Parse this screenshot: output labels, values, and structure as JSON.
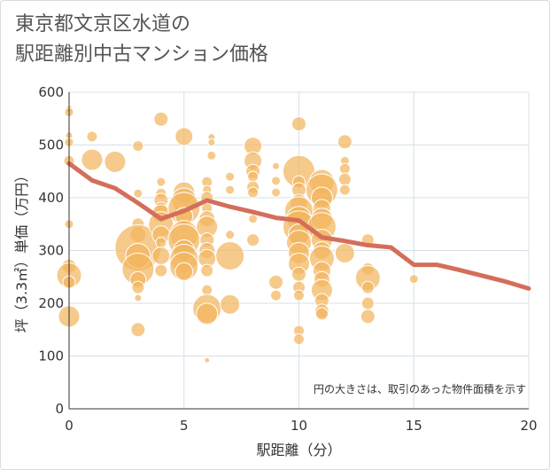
{
  "title_line1": "東京都文京区水道の",
  "title_line2": "駅距離別中古マンション価格",
  "chart_data": {
    "type": "scatter",
    "title": "東京都文京区水道の駅距離別中古マンション価格",
    "xlabel": "駅距離（分）",
    "ylabel": "坪（3.3㎡）単価（万円）",
    "xlim": [
      0,
      20
    ],
    "ylim": [
      0,
      600
    ],
    "xticks": [
      0,
      5,
      10,
      15,
      20
    ],
    "yticks": [
      0,
      100,
      200,
      300,
      400,
      500,
      600
    ],
    "grid": true,
    "note": "円の大きさは、取引のあった物件面積を示す",
    "colors": {
      "bubble": "#f2b55e",
      "line": "#d46e5a"
    },
    "average_line": {
      "x": [
        0,
        1,
        2,
        3,
        4,
        5,
        6,
        7,
        8,
        9,
        10,
        11,
        12,
        13,
        14,
        15,
        16,
        17,
        18,
        19,
        20
      ],
      "y": [
        465,
        433,
        418,
        390,
        360,
        375,
        395,
        383,
        373,
        362,
        357,
        325,
        318,
        310,
        306,
        273,
        273,
        263,
        252,
        241,
        228
      ]
    },
    "points": [
      {
        "x": 0,
        "y": 568,
        "s": 4
      },
      {
        "x": 0,
        "y": 562,
        "s": 5
      },
      {
        "x": 0,
        "y": 518,
        "s": 4
      },
      {
        "x": 0,
        "y": 505,
        "s": 5
      },
      {
        "x": 0,
        "y": 470,
        "s": 6
      },
      {
        "x": 0,
        "y": 350,
        "s": 5
      },
      {
        "x": 0,
        "y": 270,
        "s": 8
      },
      {
        "x": 0,
        "y": 253,
        "s": 14
      },
      {
        "x": 0,
        "y": 240,
        "s": 7
      },
      {
        "x": 0,
        "y": 175,
        "s": 12
      },
      {
        "x": 1,
        "y": 516,
        "s": 6
      },
      {
        "x": 1,
        "y": 472,
        "s": 12
      },
      {
        "x": 2,
        "y": 468,
        "s": 12
      },
      {
        "x": 3,
        "y": 498,
        "s": 6
      },
      {
        "x": 3,
        "y": 408,
        "s": 5
      },
      {
        "x": 3,
        "y": 350,
        "s": 7
      },
      {
        "x": 3,
        "y": 330,
        "s": 9
      },
      {
        "x": 3,
        "y": 305,
        "s": 26
      },
      {
        "x": 3,
        "y": 290,
        "s": 14
      },
      {
        "x": 3,
        "y": 265,
        "s": 18
      },
      {
        "x": 3,
        "y": 245,
        "s": 9
      },
      {
        "x": 3,
        "y": 230,
        "s": 7
      },
      {
        "x": 3,
        "y": 210,
        "s": 4
      },
      {
        "x": 3,
        "y": 150,
        "s": 8
      },
      {
        "x": 4,
        "y": 549,
        "s": 8
      },
      {
        "x": 4,
        "y": 430,
        "s": 5
      },
      {
        "x": 4,
        "y": 408,
        "s": 6
      },
      {
        "x": 4,
        "y": 395,
        "s": 8
      },
      {
        "x": 4,
        "y": 380,
        "s": 7
      },
      {
        "x": 4,
        "y": 370,
        "s": 10
      },
      {
        "x": 4,
        "y": 350,
        "s": 14
      },
      {
        "x": 4,
        "y": 330,
        "s": 10
      },
      {
        "x": 4,
        "y": 315,
        "s": 6
      },
      {
        "x": 4,
        "y": 290,
        "s": 10
      },
      {
        "x": 4,
        "y": 262,
        "s": 7
      },
      {
        "x": 5,
        "y": 516,
        "s": 10
      },
      {
        "x": 5,
        "y": 410,
        "s": 12
      },
      {
        "x": 5,
        "y": 395,
        "s": 14
      },
      {
        "x": 5,
        "y": 380,
        "s": 18
      },
      {
        "x": 5,
        "y": 365,
        "s": 10
      },
      {
        "x": 5,
        "y": 330,
        "s": 16
      },
      {
        "x": 5,
        "y": 320,
        "s": 18
      },
      {
        "x": 5,
        "y": 300,
        "s": 12
      },
      {
        "x": 5,
        "y": 285,
        "s": 16
      },
      {
        "x": 5,
        "y": 270,
        "s": 16
      },
      {
        "x": 5,
        "y": 260,
        "s": 10
      },
      {
        "x": 6,
        "y": 430,
        "s": 6
      },
      {
        "x": 6,
        "y": 415,
        "s": 5
      },
      {
        "x": 6,
        "y": 400,
        "s": 7
      },
      {
        "x": 6,
        "y": 380,
        "s": 6
      },
      {
        "x": 6,
        "y": 360,
        "s": 9
      },
      {
        "x": 6,
        "y": 345,
        "s": 12
      },
      {
        "x": 6,
        "y": 320,
        "s": 8
      },
      {
        "x": 6,
        "y": 300,
        "s": 9
      },
      {
        "x": 6,
        "y": 285,
        "s": 10
      },
      {
        "x": 6,
        "y": 262,
        "s": 7
      },
      {
        "x": 6,
        "y": 225,
        "s": 6
      },
      {
        "x": 6,
        "y": 190,
        "s": 16
      },
      {
        "x": 6,
        "y": 180,
        "s": 12
      },
      {
        "x": 6,
        "y": 92,
        "s": 3
      },
      {
        "x": 6.2,
        "y": 515,
        "s": 4
      },
      {
        "x": 6.2,
        "y": 505,
        "s": 4
      },
      {
        "x": 6.2,
        "y": 480,
        "s": 5
      },
      {
        "x": 7,
        "y": 440,
        "s": 5
      },
      {
        "x": 7,
        "y": 415,
        "s": 5
      },
      {
        "x": 7,
        "y": 330,
        "s": 5
      },
      {
        "x": 7,
        "y": 290,
        "s": 16
      },
      {
        "x": 7,
        "y": 198,
        "s": 11
      },
      {
        "x": 8,
        "y": 498,
        "s": 10
      },
      {
        "x": 8,
        "y": 470,
        "s": 10
      },
      {
        "x": 8,
        "y": 450,
        "s": 8
      },
      {
        "x": 8,
        "y": 440,
        "s": 6
      },
      {
        "x": 8,
        "y": 420,
        "s": 7
      },
      {
        "x": 8,
        "y": 410,
        "s": 6
      },
      {
        "x": 8,
        "y": 360,
        "s": 5
      },
      {
        "x": 8,
        "y": 320,
        "s": 7
      },
      {
        "x": 9,
        "y": 460,
        "s": 4
      },
      {
        "x": 9,
        "y": 432,
        "s": 5
      },
      {
        "x": 9,
        "y": 410,
        "s": 5
      },
      {
        "x": 9,
        "y": 240,
        "s": 8
      },
      {
        "x": 9,
        "y": 215,
        "s": 6
      },
      {
        "x": 10,
        "y": 540,
        "s": 8
      },
      {
        "x": 10,
        "y": 450,
        "s": 18
      },
      {
        "x": 10,
        "y": 430,
        "s": 7
      },
      {
        "x": 10,
        "y": 415,
        "s": 8
      },
      {
        "x": 10,
        "y": 390,
        "s": 10
      },
      {
        "x": 10,
        "y": 375,
        "s": 16
      },
      {
        "x": 10,
        "y": 360,
        "s": 14
      },
      {
        "x": 10,
        "y": 345,
        "s": 18
      },
      {
        "x": 10,
        "y": 330,
        "s": 12
      },
      {
        "x": 10,
        "y": 315,
        "s": 14
      },
      {
        "x": 10,
        "y": 295,
        "s": 12
      },
      {
        "x": 10,
        "y": 275,
        "s": 12
      },
      {
        "x": 10,
        "y": 255,
        "s": 8
      },
      {
        "x": 10,
        "y": 230,
        "s": 7
      },
      {
        "x": 10,
        "y": 215,
        "s": 6
      },
      {
        "x": 10,
        "y": 148,
        "s": 6
      },
      {
        "x": 10,
        "y": 132,
        "s": 6
      },
      {
        "x": 11,
        "y": 430,
        "s": 14
      },
      {
        "x": 11,
        "y": 415,
        "s": 18
      },
      {
        "x": 11,
        "y": 400,
        "s": 12
      },
      {
        "x": 11,
        "y": 380,
        "s": 10
      },
      {
        "x": 11,
        "y": 360,
        "s": 12
      },
      {
        "x": 11,
        "y": 345,
        "s": 16
      },
      {
        "x": 11,
        "y": 320,
        "s": 12
      },
      {
        "x": 11,
        "y": 300,
        "s": 10
      },
      {
        "x": 11,
        "y": 285,
        "s": 14
      },
      {
        "x": 11,
        "y": 262,
        "s": 10
      },
      {
        "x": 11,
        "y": 245,
        "s": 9
      },
      {
        "x": 11,
        "y": 225,
        "s": 12
      },
      {
        "x": 11,
        "y": 205,
        "s": 8
      },
      {
        "x": 11,
        "y": 185,
        "s": 8
      },
      {
        "x": 11,
        "y": 180,
        "s": 7
      },
      {
        "x": 12,
        "y": 506,
        "s": 8
      },
      {
        "x": 12,
        "y": 470,
        "s": 5
      },
      {
        "x": 12,
        "y": 455,
        "s": 6
      },
      {
        "x": 12,
        "y": 435,
        "s": 7
      },
      {
        "x": 12,
        "y": 415,
        "s": 6
      },
      {
        "x": 12,
        "y": 295,
        "s": 11
      },
      {
        "x": 13,
        "y": 320,
        "s": 7
      },
      {
        "x": 13,
        "y": 265,
        "s": 7
      },
      {
        "x": 13,
        "y": 248,
        "s": 14
      },
      {
        "x": 13,
        "y": 230,
        "s": 7
      },
      {
        "x": 13,
        "y": 200,
        "s": 7
      },
      {
        "x": 13,
        "y": 175,
        "s": 8
      },
      {
        "x": 15,
        "y": 246,
        "s": 5
      }
    ]
  }
}
